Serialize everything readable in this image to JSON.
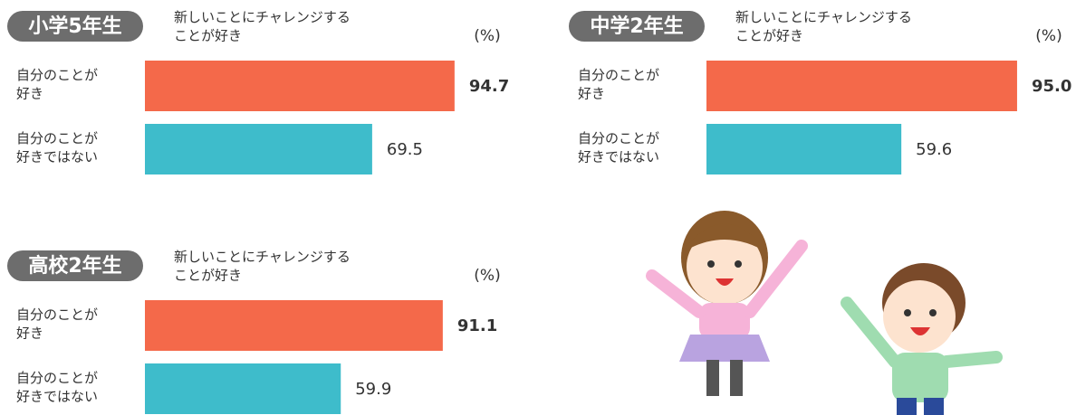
{
  "chart_data": [
    {
      "type": "hbar",
      "title": "小学5年生",
      "subtitle": "新しいことにチャレンジする\nことが好き",
      "unit": "(%)",
      "categories": [
        "自分のことが\n好き",
        "自分のことが\n好きではない"
      ],
      "values": [
        94.7,
        69.5
      ],
      "value_labels": [
        "94.7",
        "69.5"
      ],
      "colors": [
        "#f4694a",
        "#3ebccb"
      ],
      "xlim": [
        0,
        100
      ]
    },
    {
      "type": "hbar",
      "title": "中学2年生",
      "subtitle": "新しいことにチャレンジする\nことが好き",
      "unit": "(%)",
      "categories": [
        "自分のことが\n好き",
        "自分のことが\n好きではない"
      ],
      "values": [
        95.0,
        59.6
      ],
      "value_labels": [
        "95.0",
        "59.6"
      ],
      "colors": [
        "#f4694a",
        "#3ebccb"
      ],
      "xlim": [
        0,
        100
      ]
    },
    {
      "type": "hbar",
      "title": "高校2年生",
      "subtitle": "新しいことにチャレンジする\nことが好き",
      "unit": "(%)",
      "categories": [
        "自分のことが\n好き",
        "自分のことが\n好きではない"
      ],
      "values": [
        91.1,
        59.9
      ],
      "value_labels": [
        "91.1",
        "59.9"
      ],
      "colors": [
        "#f4694a",
        "#3ebccb"
      ],
      "xlim": [
        0,
        100
      ]
    }
  ]
}
